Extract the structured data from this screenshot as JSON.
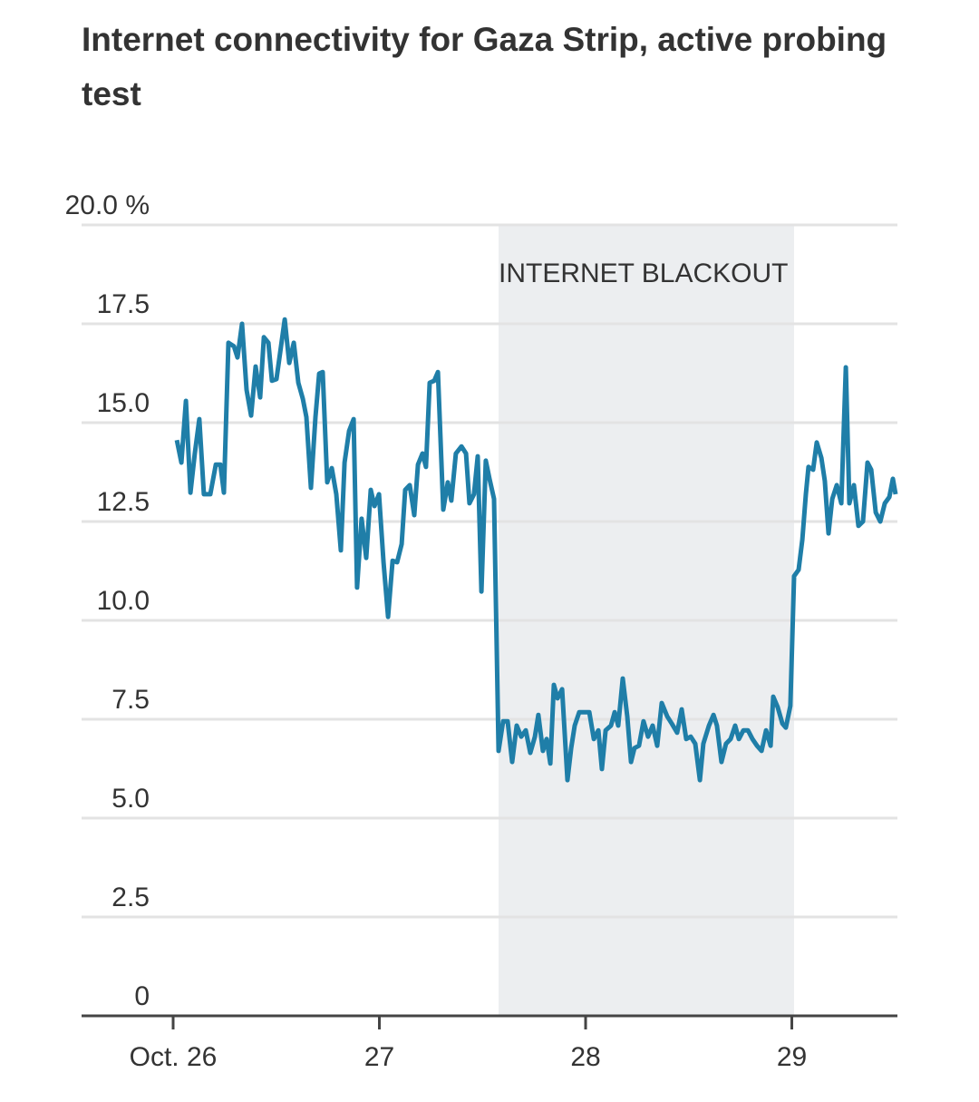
{
  "chart_data": {
    "type": "line",
    "title": "Internet connectivity for Gaza Strip, active probing test",
    "annotation": {
      "text": "INTERNET BLACKOUT",
      "x_start": 27.578,
      "x_end": 29.011
    },
    "xlim": [
      25.556,
      29.512
    ],
    "xticks": [
      {
        "value": 26,
        "label": "Oct. 26"
      },
      27,
      28,
      29
    ],
    "ylim": [
      0,
      20
    ],
    "yticks": [
      0,
      2.5,
      {
        "value": 5,
        "label": "5.0"
      },
      7.5,
      {
        "value": 10,
        "label": "10.0"
      },
      12.5,
      {
        "value": 15,
        "label": "15.0"
      },
      17.5,
      {
        "value": 20,
        "label": "20.0 %"
      }
    ],
    "grid": true,
    "series": [
      {
        "color": "#1f7ea8",
        "x": [
          26.018,
          26.04,
          26.062,
          26.084,
          26.105,
          26.127,
          26.149,
          26.18,
          26.207,
          26.229,
          26.246,
          26.268,
          26.295,
          26.312,
          26.334,
          26.356,
          26.378,
          26.4,
          26.422,
          26.44,
          26.462,
          26.479,
          26.501,
          26.523,
          26.541,
          26.563,
          26.585,
          26.607,
          26.629,
          26.646,
          26.668,
          26.69,
          26.708,
          26.725,
          26.747,
          26.769,
          26.791,
          26.813,
          26.831,
          26.853,
          26.875,
          26.892,
          26.914,
          26.936,
          26.958,
          26.976,
          26.998,
          27.02,
          27.042,
          27.064,
          27.086,
          27.108,
          27.125,
          27.147,
          27.169,
          27.187,
          27.209,
          27.226,
          27.244,
          27.266,
          27.284,
          27.31,
          27.332,
          27.349,
          27.371,
          27.398,
          27.42,
          27.437,
          27.459,
          27.477,
          27.495,
          27.516,
          27.534,
          27.556,
          27.578,
          27.6,
          27.622,
          27.644,
          27.666,
          27.688,
          27.71,
          27.732,
          27.754,
          27.771,
          27.793,
          27.811,
          27.829,
          27.846,
          27.864,
          27.886,
          27.912,
          27.93,
          27.947,
          27.969,
          27.996,
          28.018,
          28.04,
          28.062,
          28.079,
          28.097,
          28.123,
          28.141,
          28.158,
          28.18,
          28.202,
          28.22,
          28.237,
          28.259,
          28.281,
          28.303,
          28.325,
          28.347,
          28.369,
          28.396,
          28.418,
          28.444,
          28.466,
          28.488,
          28.51,
          28.532,
          28.554,
          28.571,
          28.598,
          28.62,
          28.637,
          28.659,
          28.681,
          28.703,
          28.725,
          28.743,
          28.765,
          28.787,
          28.809,
          28.831,
          28.853,
          28.875,
          28.897,
          28.91,
          28.932,
          28.954,
          28.971,
          28.993,
          29.011,
          29.033,
          29.051,
          29.068,
          29.081,
          29.103,
          29.121,
          29.143,
          29.16,
          29.178,
          29.196,
          29.218,
          29.24,
          29.262,
          29.279,
          29.301,
          29.323,
          29.345,
          29.367,
          29.385,
          29.407,
          29.429,
          29.451,
          29.473,
          29.49,
          29.503
        ],
        "values": [
          14.56,
          13.99,
          15.55,
          13.23,
          14.22,
          15.09,
          13.19,
          13.19,
          13.94,
          13.94,
          13.23,
          17.02,
          16.93,
          16.65,
          17.5,
          15.83,
          15.18,
          16.42,
          15.64,
          17.16,
          17.02,
          16.06,
          16.1,
          16.93,
          17.61,
          16.51,
          17.02,
          16.01,
          15.6,
          15.14,
          13.35,
          15.14,
          16.24,
          16.28,
          13.49,
          13.85,
          13.19,
          11.77,
          13.99,
          14.79,
          15.09,
          10.83,
          12.57,
          11.58,
          13.3,
          12.89,
          13.19,
          11.47,
          10.09,
          11.51,
          11.47,
          11.93,
          13.3,
          13.42,
          12.66,
          13.94,
          14.22,
          13.88,
          16.01,
          16.06,
          16.28,
          12.8,
          13.49,
          13.03,
          14.22,
          14.4,
          14.22,
          12.96,
          13.19,
          14.15,
          10.73,
          14.04,
          13.58,
          13.07,
          6.7,
          7.45,
          7.45,
          6.42,
          7.34,
          7.06,
          7.22,
          6.65,
          7.06,
          7.61,
          6.7,
          7.0,
          6.38,
          8.37,
          8.03,
          8.26,
          5.96,
          6.77,
          7.34,
          7.68,
          7.68,
          7.68,
          7.0,
          7.22,
          6.24,
          7.22,
          7.34,
          7.68,
          7.34,
          8.53,
          7.57,
          6.42,
          6.77,
          6.83,
          7.45,
          7.06,
          7.34,
          6.83,
          7.91,
          7.57,
          7.39,
          7.16,
          7.75,
          7.0,
          7.06,
          6.88,
          5.96,
          6.88,
          7.34,
          7.61,
          7.34,
          6.42,
          6.88,
          7.0,
          7.34,
          7.0,
          7.22,
          7.22,
          7.0,
          6.83,
          6.7,
          7.22,
          6.83,
          8.07,
          7.8,
          7.39,
          7.29,
          7.84,
          11.12,
          11.28,
          12.04,
          13.19,
          13.88,
          13.81,
          14.5,
          14.11,
          13.53,
          12.2,
          13.07,
          13.42,
          12.96,
          16.4,
          12.96,
          13.42,
          12.39,
          12.5,
          13.99,
          13.81,
          12.73,
          12.5,
          12.96,
          13.12,
          13.58,
          13.19
        ]
      }
    ]
  }
}
